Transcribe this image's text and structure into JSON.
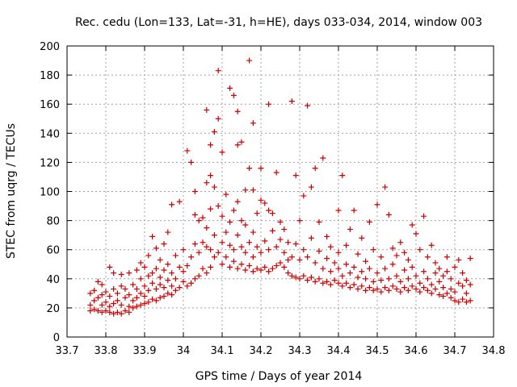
{
  "chart_data": {
    "type": "scatter",
    "title": "Rec. cedu (Lon=133, Lat=-31, h=HE), days 033-034, 2014, window 003",
    "xlabel": "GPS time / Days of year 2014",
    "ylabel": "STEC from uqrg / TECUs",
    "xlim": [
      33.7,
      34.8
    ],
    "ylim": [
      0,
      200
    ],
    "xticks": [
      33.7,
      33.8,
      33.9,
      34.0,
      34.1,
      34.2,
      34.3,
      34.4,
      34.5,
      34.6,
      34.7,
      34.8
    ],
    "xtick_labels": [
      "33.7",
      "33.8",
      "33.9",
      "34",
      "34.1",
      "34.2",
      "34.3",
      "34.4",
      "34.5",
      "34.6",
      "34.7",
      "34.8"
    ],
    "yticks": [
      0,
      20,
      40,
      60,
      80,
      100,
      120,
      140,
      160,
      180,
      200
    ],
    "ytick_labels": [
      "0",
      "20",
      "40",
      "60",
      "80",
      "100",
      "120",
      "140",
      "160",
      "180",
      "200"
    ],
    "grid": true,
    "marker": "+",
    "color": "#cc0000",
    "points": [
      [
        33.76,
        18
      ],
      [
        33.76,
        22
      ],
      [
        33.76,
        30
      ],
      [
        33.77,
        19
      ],
      [
        33.77,
        25
      ],
      [
        33.77,
        32
      ],
      [
        33.78,
        18
      ],
      [
        33.78,
        27
      ],
      [
        33.78,
        38
      ],
      [
        33.79,
        17
      ],
      [
        33.79,
        22
      ],
      [
        33.79,
        29
      ],
      [
        33.79,
        36
      ],
      [
        33.8,
        18
      ],
      [
        33.8,
        24
      ],
      [
        33.8,
        31
      ],
      [
        33.81,
        17
      ],
      [
        33.81,
        21
      ],
      [
        33.81,
        28
      ],
      [
        33.81,
        48
      ],
      [
        33.82,
        16
      ],
      [
        33.82,
        23
      ],
      [
        33.82,
        33
      ],
      [
        33.82,
        44
      ],
      [
        33.83,
        17
      ],
      [
        33.83,
        25
      ],
      [
        33.83,
        30
      ],
      [
        33.84,
        16
      ],
      [
        33.84,
        22
      ],
      [
        33.84,
        35
      ],
      [
        33.84,
        43
      ],
      [
        33.85,
        18
      ],
      [
        33.85,
        27
      ],
      [
        33.85,
        33
      ],
      [
        33.86,
        17
      ],
      [
        33.86,
        21
      ],
      [
        33.86,
        29
      ],
      [
        33.86,
        44
      ],
      [
        33.87,
        20
      ],
      [
        33.87,
        25
      ],
      [
        33.87,
        36
      ],
      [
        33.88,
        21
      ],
      [
        33.88,
        27
      ],
      [
        33.88,
        33
      ],
      [
        33.88,
        46
      ],
      [
        33.89,
        22
      ],
      [
        33.89,
        30
      ],
      [
        33.89,
        40
      ],
      [
        33.89,
        51
      ],
      [
        33.9,
        23
      ],
      [
        33.9,
        28
      ],
      [
        33.9,
        35
      ],
      [
        33.9,
        48
      ],
      [
        33.91,
        24
      ],
      [
        33.91,
        32
      ],
      [
        33.91,
        42
      ],
      [
        33.91,
        56
      ],
      [
        33.92,
        26
      ],
      [
        33.92,
        37
      ],
      [
        33.92,
        44
      ],
      [
        33.92,
        69
      ],
      [
        33.93,
        25
      ],
      [
        33.93,
        33
      ],
      [
        33.93,
        47
      ],
      [
        33.93,
        61
      ],
      [
        33.94,
        27
      ],
      [
        33.94,
        36
      ],
      [
        33.94,
        41
      ],
      [
        33.94,
        53
      ],
      [
        33.95,
        28
      ],
      [
        33.95,
        34
      ],
      [
        33.95,
        46
      ],
      [
        33.95,
        64
      ],
      [
        33.96,
        30
      ],
      [
        33.96,
        39
      ],
      [
        33.96,
        50
      ],
      [
        33.96,
        72
      ],
      [
        33.97,
        29
      ],
      [
        33.97,
        35
      ],
      [
        33.97,
        44
      ],
      [
        33.97,
        91
      ],
      [
        33.98,
        32
      ],
      [
        33.98,
        40
      ],
      [
        33.98,
        56
      ],
      [
        33.99,
        34
      ],
      [
        33.99,
        48
      ],
      [
        33.99,
        93
      ],
      [
        34.0,
        38
      ],
      [
        34.0,
        45
      ],
      [
        34.0,
        60
      ],
      [
        34.01,
        35
      ],
      [
        34.01,
        49
      ],
      [
        34.01,
        128
      ],
      [
        34.02,
        37
      ],
      [
        34.02,
        55
      ],
      [
        34.02,
        120
      ],
      [
        34.03,
        40
      ],
      [
        34.03,
        64
      ],
      [
        34.03,
        84
      ],
      [
        34.03,
        100
      ],
      [
        34.04,
        42
      ],
      [
        34.04,
        58
      ],
      [
        34.04,
        80
      ],
      [
        34.05,
        47
      ],
      [
        34.05,
        65
      ],
      [
        34.05,
        82
      ],
      [
        34.06,
        44
      ],
      [
        34.06,
        62
      ],
      [
        34.06,
        75
      ],
      [
        34.06,
        106
      ],
      [
        34.06,
        156
      ],
      [
        34.07,
        48
      ],
      [
        34.07,
        60
      ],
      [
        34.07,
        88
      ],
      [
        34.07,
        111
      ],
      [
        34.07,
        132
      ],
      [
        34.08,
        55
      ],
      [
        34.08,
        70
      ],
      [
        34.08,
        103
      ],
      [
        34.08,
        141
      ],
      [
        34.09,
        58
      ],
      [
        34.09,
        90
      ],
      [
        34.09,
        150
      ],
      [
        34.09,
        183
      ],
      [
        34.1,
        50
      ],
      [
        34.1,
        65
      ],
      [
        34.1,
        83
      ],
      [
        34.1,
        127
      ],
      [
        34.11,
        55
      ],
      [
        34.11,
        72
      ],
      [
        34.11,
        98
      ],
      [
        34.12,
        48
      ],
      [
        34.12,
        63
      ],
      [
        34.12,
        79
      ],
      [
        34.12,
        171
      ],
      [
        34.13,
        52
      ],
      [
        34.13,
        60
      ],
      [
        34.13,
        87
      ],
      [
        34.13,
        166
      ],
      [
        34.14,
        47
      ],
      [
        34.14,
        70
      ],
      [
        34.14,
        93
      ],
      [
        34.14,
        132
      ],
      [
        34.14,
        155
      ],
      [
        34.15,
        50
      ],
      [
        34.15,
        62
      ],
      [
        34.15,
        80
      ],
      [
        34.15,
        134
      ],
      [
        34.16,
        46
      ],
      [
        34.16,
        58
      ],
      [
        34.16,
        77
      ],
      [
        34.16,
        101
      ],
      [
        34.17,
        49
      ],
      [
        34.17,
        65
      ],
      [
        34.17,
        116
      ],
      [
        34.17,
        190
      ],
      [
        34.18,
        45
      ],
      [
        34.18,
        55
      ],
      [
        34.18,
        72
      ],
      [
        34.18,
        101
      ],
      [
        34.18,
        147
      ],
      [
        34.19,
        47
      ],
      [
        34.19,
        62
      ],
      [
        34.19,
        85
      ],
      [
        34.2,
        46
      ],
      [
        34.2,
        58
      ],
      [
        34.2,
        94
      ],
      [
        34.2,
        116
      ],
      [
        34.21,
        48
      ],
      [
        34.21,
        66
      ],
      [
        34.21,
        92
      ],
      [
        34.22,
        45
      ],
      [
        34.22,
        60
      ],
      [
        34.22,
        87
      ],
      [
        34.22,
        160
      ],
      [
        34.23,
        47
      ],
      [
        34.23,
        73
      ],
      [
        34.23,
        85
      ],
      [
        34.24,
        49
      ],
      [
        34.24,
        62
      ],
      [
        34.24,
        113
      ],
      [
        34.25,
        51
      ],
      [
        34.25,
        67
      ],
      [
        34.25,
        79
      ],
      [
        34.26,
        48
      ],
      [
        34.26,
        58
      ],
      [
        34.26,
        74
      ],
      [
        34.27,
        44
      ],
      [
        34.27,
        53
      ],
      [
        34.27,
        65
      ],
      [
        34.28,
        42
      ],
      [
        34.28,
        55
      ],
      [
        34.28,
        162
      ],
      [
        34.29,
        41
      ],
      [
        34.29,
        64
      ],
      [
        34.29,
        111
      ],
      [
        34.3,
        40
      ],
      [
        34.3,
        53
      ],
      [
        34.3,
        80
      ],
      [
        34.31,
        42
      ],
      [
        34.31,
        60
      ],
      [
        34.31,
        97
      ],
      [
        34.32,
        39
      ],
      [
        34.32,
        55
      ],
      [
        34.32,
        159
      ],
      [
        34.33,
        41
      ],
      [
        34.33,
        68
      ],
      [
        34.33,
        103
      ],
      [
        34.34,
        38
      ],
      [
        34.34,
        51
      ],
      [
        34.34,
        116
      ],
      [
        34.35,
        40
      ],
      [
        34.35,
        59
      ],
      [
        34.35,
        79
      ],
      [
        34.36,
        37
      ],
      [
        34.36,
        47
      ],
      [
        34.36,
        123
      ],
      [
        34.37,
        38
      ],
      [
        34.37,
        54
      ],
      [
        34.37,
        69
      ],
      [
        34.38,
        36
      ],
      [
        34.38,
        45
      ],
      [
        34.38,
        62
      ],
      [
        34.39,
        39
      ],
      [
        34.39,
        51
      ],
      [
        34.4,
        37
      ],
      [
        34.4,
        47
      ],
      [
        34.4,
        58
      ],
      [
        34.4,
        87
      ],
      [
        34.41,
        35
      ],
      [
        34.41,
        42
      ],
      [
        34.41,
        111
      ],
      [
        34.42,
        37
      ],
      [
        34.42,
        50
      ],
      [
        34.42,
        63
      ],
      [
        34.43,
        34
      ],
      [
        34.43,
        44
      ],
      [
        34.43,
        74
      ],
      [
        34.44,
        36
      ],
      [
        34.44,
        48
      ],
      [
        34.44,
        87
      ],
      [
        34.45,
        33
      ],
      [
        34.45,
        41
      ],
      [
        34.45,
        57
      ],
      [
        34.46,
        35
      ],
      [
        34.46,
        45
      ],
      [
        34.46,
        68
      ],
      [
        34.47,
        32
      ],
      [
        34.47,
        40
      ],
      [
        34.47,
        52
      ],
      [
        34.48,
        34
      ],
      [
        34.48,
        47
      ],
      [
        34.48,
        79
      ],
      [
        34.49,
        32
      ],
      [
        34.49,
        38
      ],
      [
        34.49,
        60
      ],
      [
        34.5,
        33
      ],
      [
        34.5,
        44
      ],
      [
        34.5,
        91
      ],
      [
        34.51,
        31
      ],
      [
        34.51,
        39
      ],
      [
        34.51,
        55
      ],
      [
        34.52,
        34
      ],
      [
        34.52,
        47
      ],
      [
        34.52,
        103
      ],
      [
        34.53,
        32
      ],
      [
        34.53,
        40
      ],
      [
        34.53,
        84
      ],
      [
        34.54,
        35
      ],
      [
        34.54,
        50
      ],
      [
        34.54,
        61
      ],
      [
        34.55,
        33
      ],
      [
        34.55,
        42
      ],
      [
        34.55,
        56
      ],
      [
        34.56,
        31
      ],
      [
        34.56,
        38
      ],
      [
        34.56,
        65
      ],
      [
        34.57,
        34
      ],
      [
        34.57,
        46
      ],
      [
        34.57,
        58
      ],
      [
        34.58,
        32
      ],
      [
        34.58,
        40
      ],
      [
        34.58,
        53
      ],
      [
        34.59,
        35
      ],
      [
        34.59,
        48
      ],
      [
        34.59,
        77
      ],
      [
        34.6,
        33
      ],
      [
        34.6,
        42
      ],
      [
        34.6,
        71
      ],
      [
        34.61,
        31
      ],
      [
        34.61,
        37
      ],
      [
        34.61,
        60
      ],
      [
        34.62,
        34
      ],
      [
        34.62,
        45
      ],
      [
        34.62,
        83
      ],
      [
        34.63,
        32
      ],
      [
        34.63,
        40
      ],
      [
        34.63,
        55
      ],
      [
        34.64,
        30
      ],
      [
        34.64,
        36
      ],
      [
        34.64,
        63
      ],
      [
        34.65,
        33
      ],
      [
        34.65,
        44
      ],
      [
        34.65,
        51
      ],
      [
        34.66,
        29
      ],
      [
        34.66,
        38
      ],
      [
        34.66,
        47
      ],
      [
        34.67,
        28
      ],
      [
        34.67,
        34
      ],
      [
        34.67,
        42
      ],
      [
        34.68,
        30
      ],
      [
        34.68,
        45
      ],
      [
        34.68,
        55
      ],
      [
        34.69,
        27
      ],
      [
        34.69,
        33
      ],
      [
        34.69,
        40
      ],
      [
        34.7,
        25
      ],
      [
        34.7,
        31
      ],
      [
        34.7,
        48
      ],
      [
        34.71,
        24
      ],
      [
        34.71,
        37
      ],
      [
        34.71,
        53
      ],
      [
        34.72,
        26
      ],
      [
        34.72,
        35
      ],
      [
        34.72,
        44
      ],
      [
        34.73,
        24
      ],
      [
        34.73,
        30
      ],
      [
        34.73,
        39
      ],
      [
        34.74,
        25
      ],
      [
        34.74,
        36
      ],
      [
        34.74,
        54
      ]
    ]
  }
}
